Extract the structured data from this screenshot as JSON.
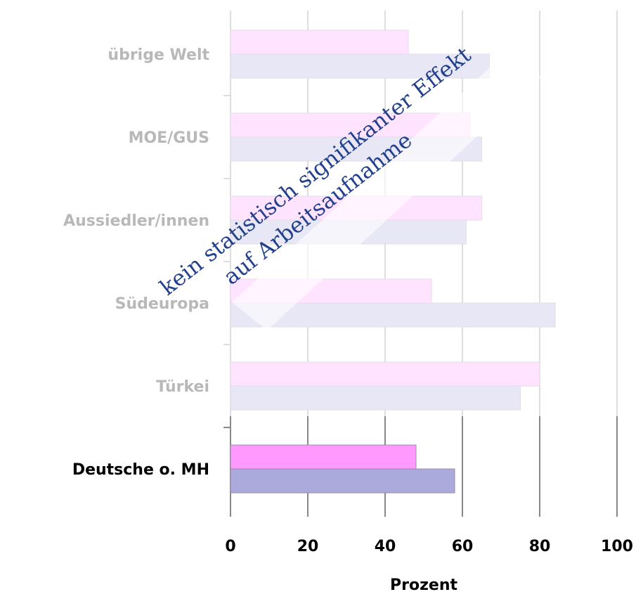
{
  "chart_data": {
    "type": "hbar",
    "categories": [
      "übrige Welt",
      "MOE/GUS",
      "Aussiedler/innen",
      "Südeuropa",
      "Türkei",
      "Deutsche o. MH"
    ],
    "series": [
      {
        "color": "#ff99ff",
        "values": [
          46,
          62,
          65,
          52,
          80,
          48
        ]
      },
      {
        "color": "#aaaadd",
        "values": [
          67,
          65,
          61,
          84,
          75,
          58
        ]
      }
    ],
    "xlim": [
      0,
      100
    ],
    "xticks": [
      0,
      20,
      40,
      60,
      80,
      100
    ],
    "grid": true,
    "xlabel": "Prozent",
    "annotations": [
      "kein statistisch signifikanter Effekt",
      "auf Arbeitsaufnahme"
    ]
  }
}
